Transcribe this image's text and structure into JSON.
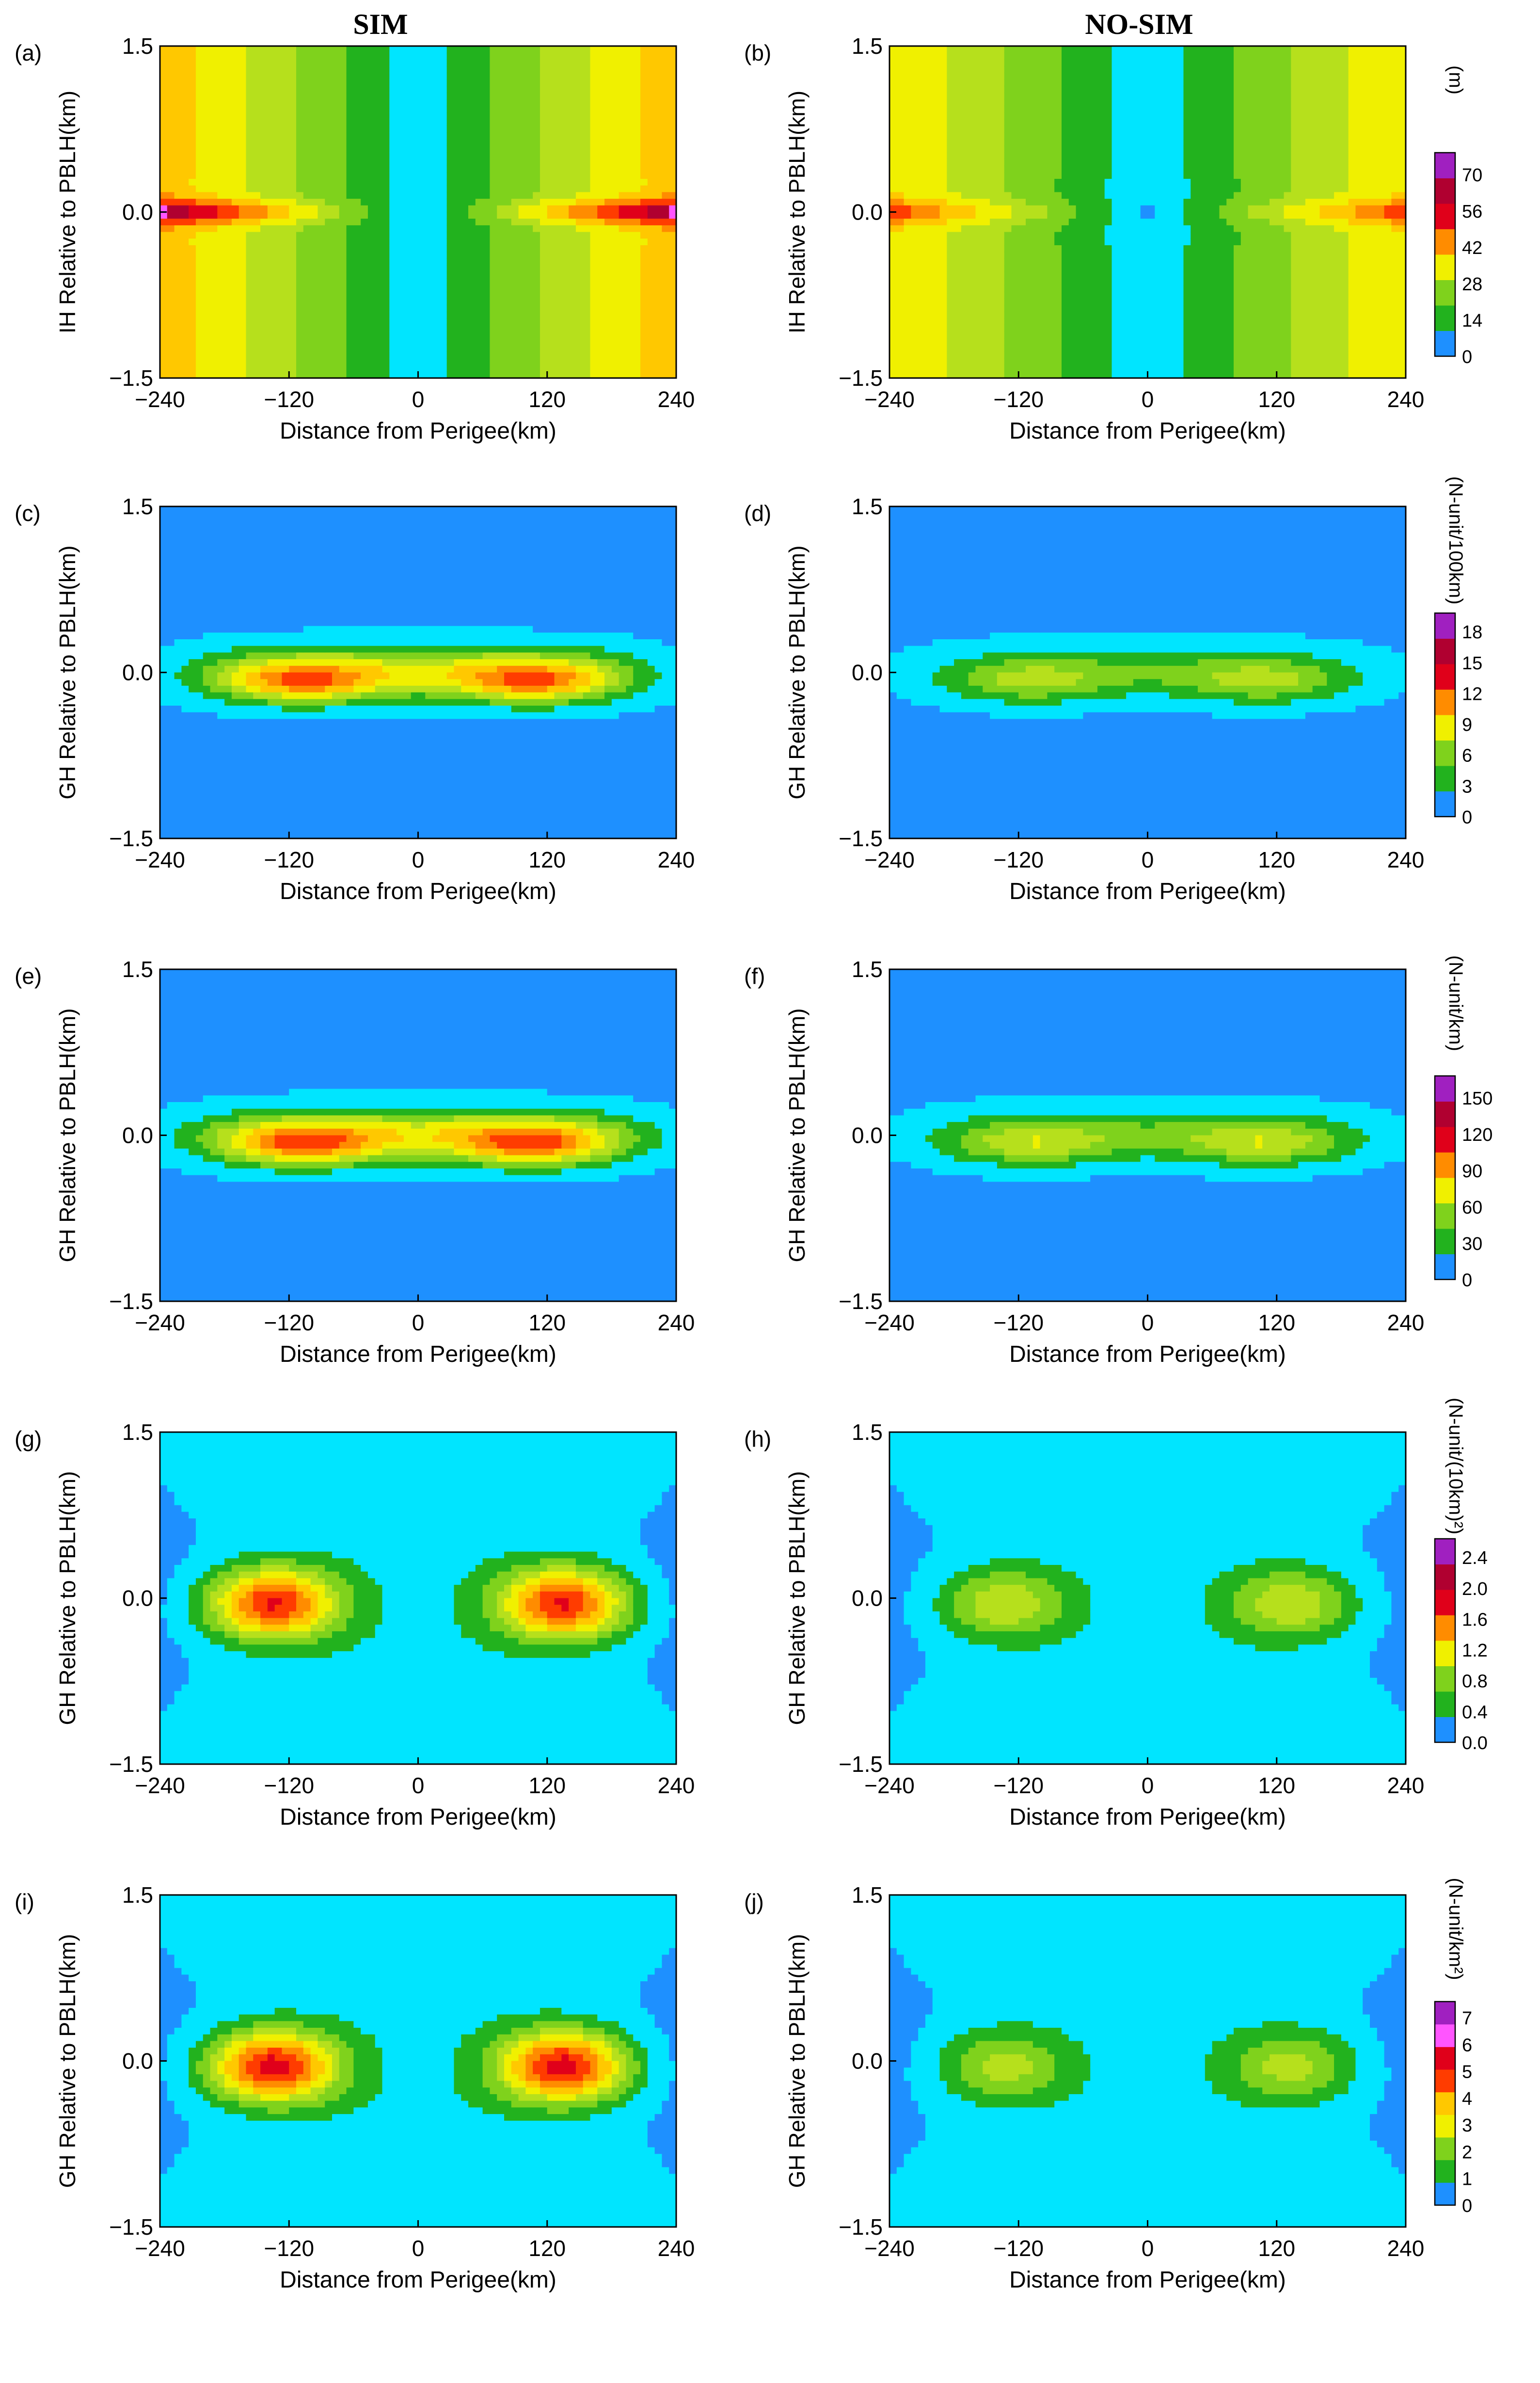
{
  "titles": {
    "left": "SIM",
    "right": "NO-SIM"
  },
  "xlabel": "Distance from Perigee(km)",
  "x_ticks": [
    "−240",
    "−120",
    "0",
    "120",
    "240"
  ],
  "y_ticks": [
    "1.5",
    "0.0",
    "−1.5"
  ],
  "colors": {
    "levels": [
      "#1E90FF",
      "#00E5FF",
      "#22B21E",
      "#7FD21C",
      "#B6E01C",
      "#F0F000",
      "#FFC800",
      "#FF8C00",
      "#FF3C00",
      "#E0001A",
      "#B00030",
      "#FF55FF",
      "#A020C0"
    ]
  },
  "rows": [
    {
      "ylabel": "IH Relative to PBLH(km)",
      "colorbar_title": "(m)",
      "colorbar_ticks": [
        "0",
        "14",
        "28",
        "42",
        "56",
        "70"
      ],
      "panels": [
        {
          "label": "(a)",
          "pattern": "ih",
          "intensity": 0.95
        },
        {
          "label": "(b)",
          "pattern": "ih",
          "intensity": 0.55
        }
      ]
    },
    {
      "ylabel": "GH Relative to PBLH(km)",
      "colorbar_title": "(N-unit/100km)",
      "colorbar_ticks": [
        "0",
        "3",
        "6",
        "9",
        "12",
        "15",
        "18"
      ],
      "panels": [
        {
          "label": "(c)",
          "pattern": "band",
          "intensity": 0.9
        },
        {
          "label": "(d)",
          "pattern": "band",
          "intensity": 0.45
        }
      ]
    },
    {
      "ylabel": "GH Relative to PBLH(km)",
      "colorbar_title": "(N-unit/km)",
      "colorbar_ticks": [
        "0",
        "30",
        "60",
        "90",
        "120",
        "150"
      ],
      "panels": [
        {
          "label": "(e)",
          "pattern": "band",
          "intensity": 0.95
        },
        {
          "label": "(f)",
          "pattern": "band",
          "intensity": 0.5
        }
      ]
    },
    {
      "ylabel": "GH Relative to PBLH(km)",
      "colorbar_title": "(N-unit/(10km)²)",
      "colorbar_ticks": [
        "0.0",
        "0.4",
        "0.8",
        "1.2",
        "1.6",
        "2.0",
        "2.4"
      ],
      "panels": [
        {
          "label": "(g)",
          "pattern": "lobes",
          "intensity": 0.95
        },
        {
          "label": "(h)",
          "pattern": "lobes",
          "intensity": 0.45
        }
      ]
    },
    {
      "ylabel": "GH Relative to PBLH(km)",
      "colorbar_title": "(N-unit/km²)",
      "colorbar_ticks": [
        "0",
        "1",
        "2",
        "3",
        "4",
        "5",
        "6",
        "7"
      ],
      "panels": [
        {
          "label": "(i)",
          "pattern": "lobes",
          "intensity": 1.0
        },
        {
          "label": "(j)",
          "pattern": "lobes",
          "intensity": 0.4
        }
      ]
    }
  ],
  "chart_data": [
    {
      "type": "heatmap",
      "panel": "(a)",
      "title": "SIM",
      "xlabel": "Distance from Perigee(km)",
      "ylabel": "IH Relative to PBLH(km)",
      "xlim": [
        -240,
        240
      ],
      "ylim": [
        -1.5,
        1.5
      ],
      "colorbar": "(m)",
      "clim": [
        0,
        70
      ],
      "peak_at": [
        [
          -240,
          0.0
        ],
        [
          240,
          0.0
        ]
      ]
    },
    {
      "type": "heatmap",
      "panel": "(b)",
      "title": "NO-SIM",
      "xlabel": "Distance from Perigee(km)",
      "ylabel": "IH Relative to PBLH(km)",
      "xlim": [
        -240,
        240
      ],
      "ylim": [
        -1.5,
        1.5
      ],
      "colorbar": "(m)",
      "clim": [
        0,
        70
      ]
    },
    {
      "type": "heatmap",
      "panel": "(c)",
      "xlabel": "Distance from Perigee(km)",
      "ylabel": "GH Relative to PBLH(km)",
      "xlim": [
        -240,
        240
      ],
      "ylim": [
        -1.5,
        1.5
      ],
      "colorbar": "(N-unit/100km)",
      "clim": [
        0,
        18
      ],
      "peak_at": [
        [
          -120,
          -0.1
        ],
        [
          120,
          -0.1
        ]
      ]
    },
    {
      "type": "heatmap",
      "panel": "(d)",
      "xlabel": "Distance from Perigee(km)",
      "ylabel": "GH Relative to PBLH(km)",
      "xlim": [
        -240,
        240
      ],
      "ylim": [
        -1.5,
        1.5
      ],
      "colorbar": "(N-unit/100km)",
      "clim": [
        0,
        18
      ]
    },
    {
      "type": "heatmap",
      "panel": "(e)",
      "xlabel": "Distance from Perigee(km)",
      "ylabel": "GH Relative to PBLH(km)",
      "xlim": [
        -240,
        240
      ],
      "ylim": [
        -1.5,
        1.5
      ],
      "colorbar": "(N-unit/km)",
      "clim": [
        0,
        150
      ],
      "peak_at": [
        [
          -70,
          0.0
        ],
        [
          70,
          0.0
        ]
      ]
    },
    {
      "type": "heatmap",
      "panel": "(f)",
      "xlabel": "Distance from Perigee(km)",
      "ylabel": "GH Relative to PBLH(km)",
      "xlim": [
        -240,
        240
      ],
      "ylim": [
        -1.5,
        1.5
      ],
      "colorbar": "(N-unit/km)",
      "clim": [
        0,
        150
      ]
    },
    {
      "type": "heatmap",
      "panel": "(g)",
      "xlabel": "Distance from Perigee(km)",
      "ylabel": "GH Relative to PBLH(km)",
      "xlim": [
        -240,
        240
      ],
      "ylim": [
        -1.5,
        1.5
      ],
      "colorbar": "(N-unit/(10km)²)",
      "clim": [
        0,
        2.4
      ],
      "peak_at": [
        [
          -130,
          -0.1
        ],
        [
          130,
          -0.2
        ]
      ]
    },
    {
      "type": "heatmap",
      "panel": "(h)",
      "xlabel": "Distance from Perigee(km)",
      "ylabel": "GH Relative to PBLH(km)",
      "xlim": [
        -240,
        240
      ],
      "ylim": [
        -1.5,
        1.5
      ],
      "colorbar": "(N-unit/(10km)²)",
      "clim": [
        0,
        2.4
      ]
    },
    {
      "type": "heatmap",
      "panel": "(i)",
      "xlabel": "Distance from Perigee(km)",
      "ylabel": "GH Relative to PBLH(km)",
      "xlim": [
        -240,
        240
      ],
      "ylim": [
        -1.5,
        1.5
      ],
      "colorbar": "(N-unit/km²)",
      "clim": [
        0,
        7
      ],
      "peak_at": [
        [
          -130,
          -0.1
        ],
        [
          130,
          -0.1
        ]
      ]
    },
    {
      "type": "heatmap",
      "panel": "(j)",
      "xlabel": "Distance from Perigee(km)",
      "ylabel": "GH Relative to PBLH(km)",
      "xlim": [
        -240,
        240
      ],
      "ylim": [
        -1.5,
        1.5
      ],
      "colorbar": "(N-unit/km²)",
      "clim": [
        0,
        7
      ]
    }
  ]
}
